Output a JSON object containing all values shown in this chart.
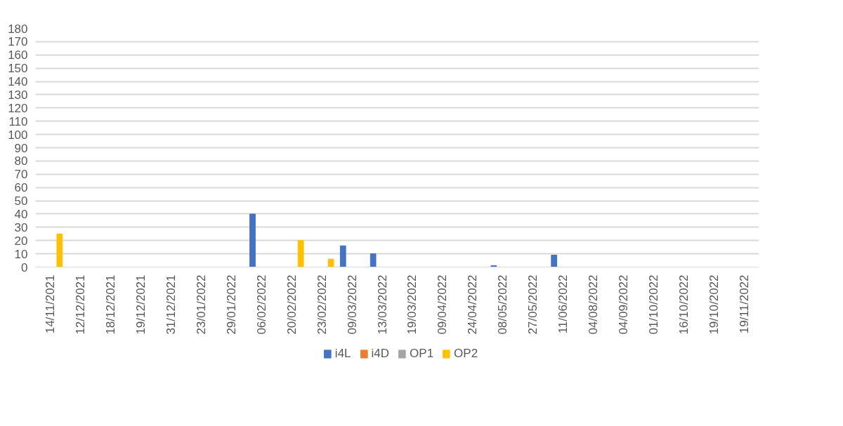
{
  "chart_data": {
    "type": "bar",
    "categories": [
      "14/11/2021",
      "12/12/2021",
      "18/12/2021",
      "19/12/2021",
      "31/12/2021",
      "23/01/2022",
      "29/01/2022",
      "06/02/2022",
      "20/02/2022",
      "23/02/2022",
      "09/03/2022",
      "13/03/2022",
      "19/03/2022",
      "09/04/2022",
      "24/04/2022",
      "08/05/2022",
      "27/05/2022",
      "11/06/2022",
      "04/08/2022",
      "04/09/2022",
      "01/10/2022",
      "16/10/2022",
      "19/10/2022",
      "19/11/2022"
    ],
    "series": [
      {
        "name": "i4L",
        "color": "#4472c4",
        "values": [
          null,
          null,
          null,
          null,
          null,
          null,
          null,
          40,
          null,
          null,
          16,
          10,
          null,
          null,
          null,
          1,
          null,
          9,
          null,
          null,
          null,
          null,
          null,
          null
        ]
      },
      {
        "name": "i4D",
        "color": "#ed7d31",
        "values": [
          null,
          null,
          null,
          null,
          null,
          null,
          null,
          null,
          null,
          null,
          null,
          null,
          null,
          null,
          null,
          null,
          null,
          null,
          null,
          null,
          null,
          null,
          null,
          null
        ]
      },
      {
        "name": "OP1",
        "color": "#a5a5a5",
        "values": [
          null,
          null,
          null,
          null,
          null,
          null,
          null,
          null,
          null,
          null,
          null,
          null,
          null,
          null,
          null,
          null,
          null,
          null,
          null,
          null,
          null,
          null,
          null,
          null
        ]
      },
      {
        "name": "OP2",
        "color": "#ffc000",
        "values": [
          25,
          null,
          null,
          null,
          null,
          null,
          null,
          null,
          20,
          6,
          null,
          null,
          null,
          null,
          null,
          null,
          null,
          null,
          null,
          null,
          null,
          null,
          null,
          null
        ]
      }
    ],
    "ylim": [
      0,
      180
    ],
    "yticks": [
      0,
      10,
      20,
      30,
      40,
      50,
      60,
      70,
      80,
      90,
      100,
      110,
      120,
      130,
      140,
      150,
      160,
      170,
      180
    ],
    "grid": "y",
    "legend": "bottom"
  }
}
